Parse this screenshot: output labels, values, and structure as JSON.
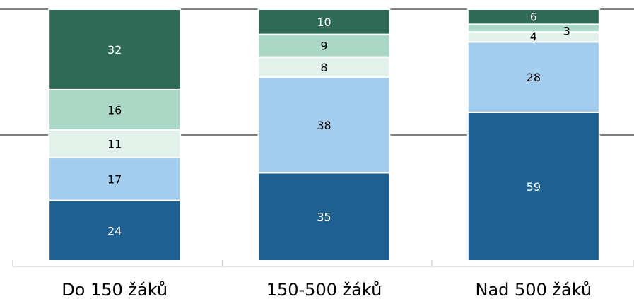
{
  "chart_data": {
    "type": "bar",
    "stacked": true,
    "categories": [
      "Do 150 žáků",
      "150-500 žáků",
      "Nad 500 žáků"
    ],
    "series": [
      {
        "values": [
          24,
          35,
          59
        ],
        "color": "#1F6092",
        "label_color": "#ffffff"
      },
      {
        "values": [
          17,
          38,
          28
        ],
        "color": "#A3CDEE",
        "label_color": "#000000"
      },
      {
        "values": [
          11,
          8,
          4
        ],
        "color": "#E3F1EB",
        "label_color": "#000000"
      },
      {
        "values": [
          16,
          9,
          3
        ],
        "color": "#AAD7C6",
        "label_color": "#000000"
      },
      {
        "values": [
          32,
          10,
          6
        ],
        "color": "#2F6A57",
        "label_color": "#ffffff"
      }
    ],
    "ylim": [
      0,
      100
    ],
    "grid": true,
    "legend": "none",
    "gridline_values": [
      50,
      100
    ],
    "gridline_color": "#7F7F7F"
  }
}
